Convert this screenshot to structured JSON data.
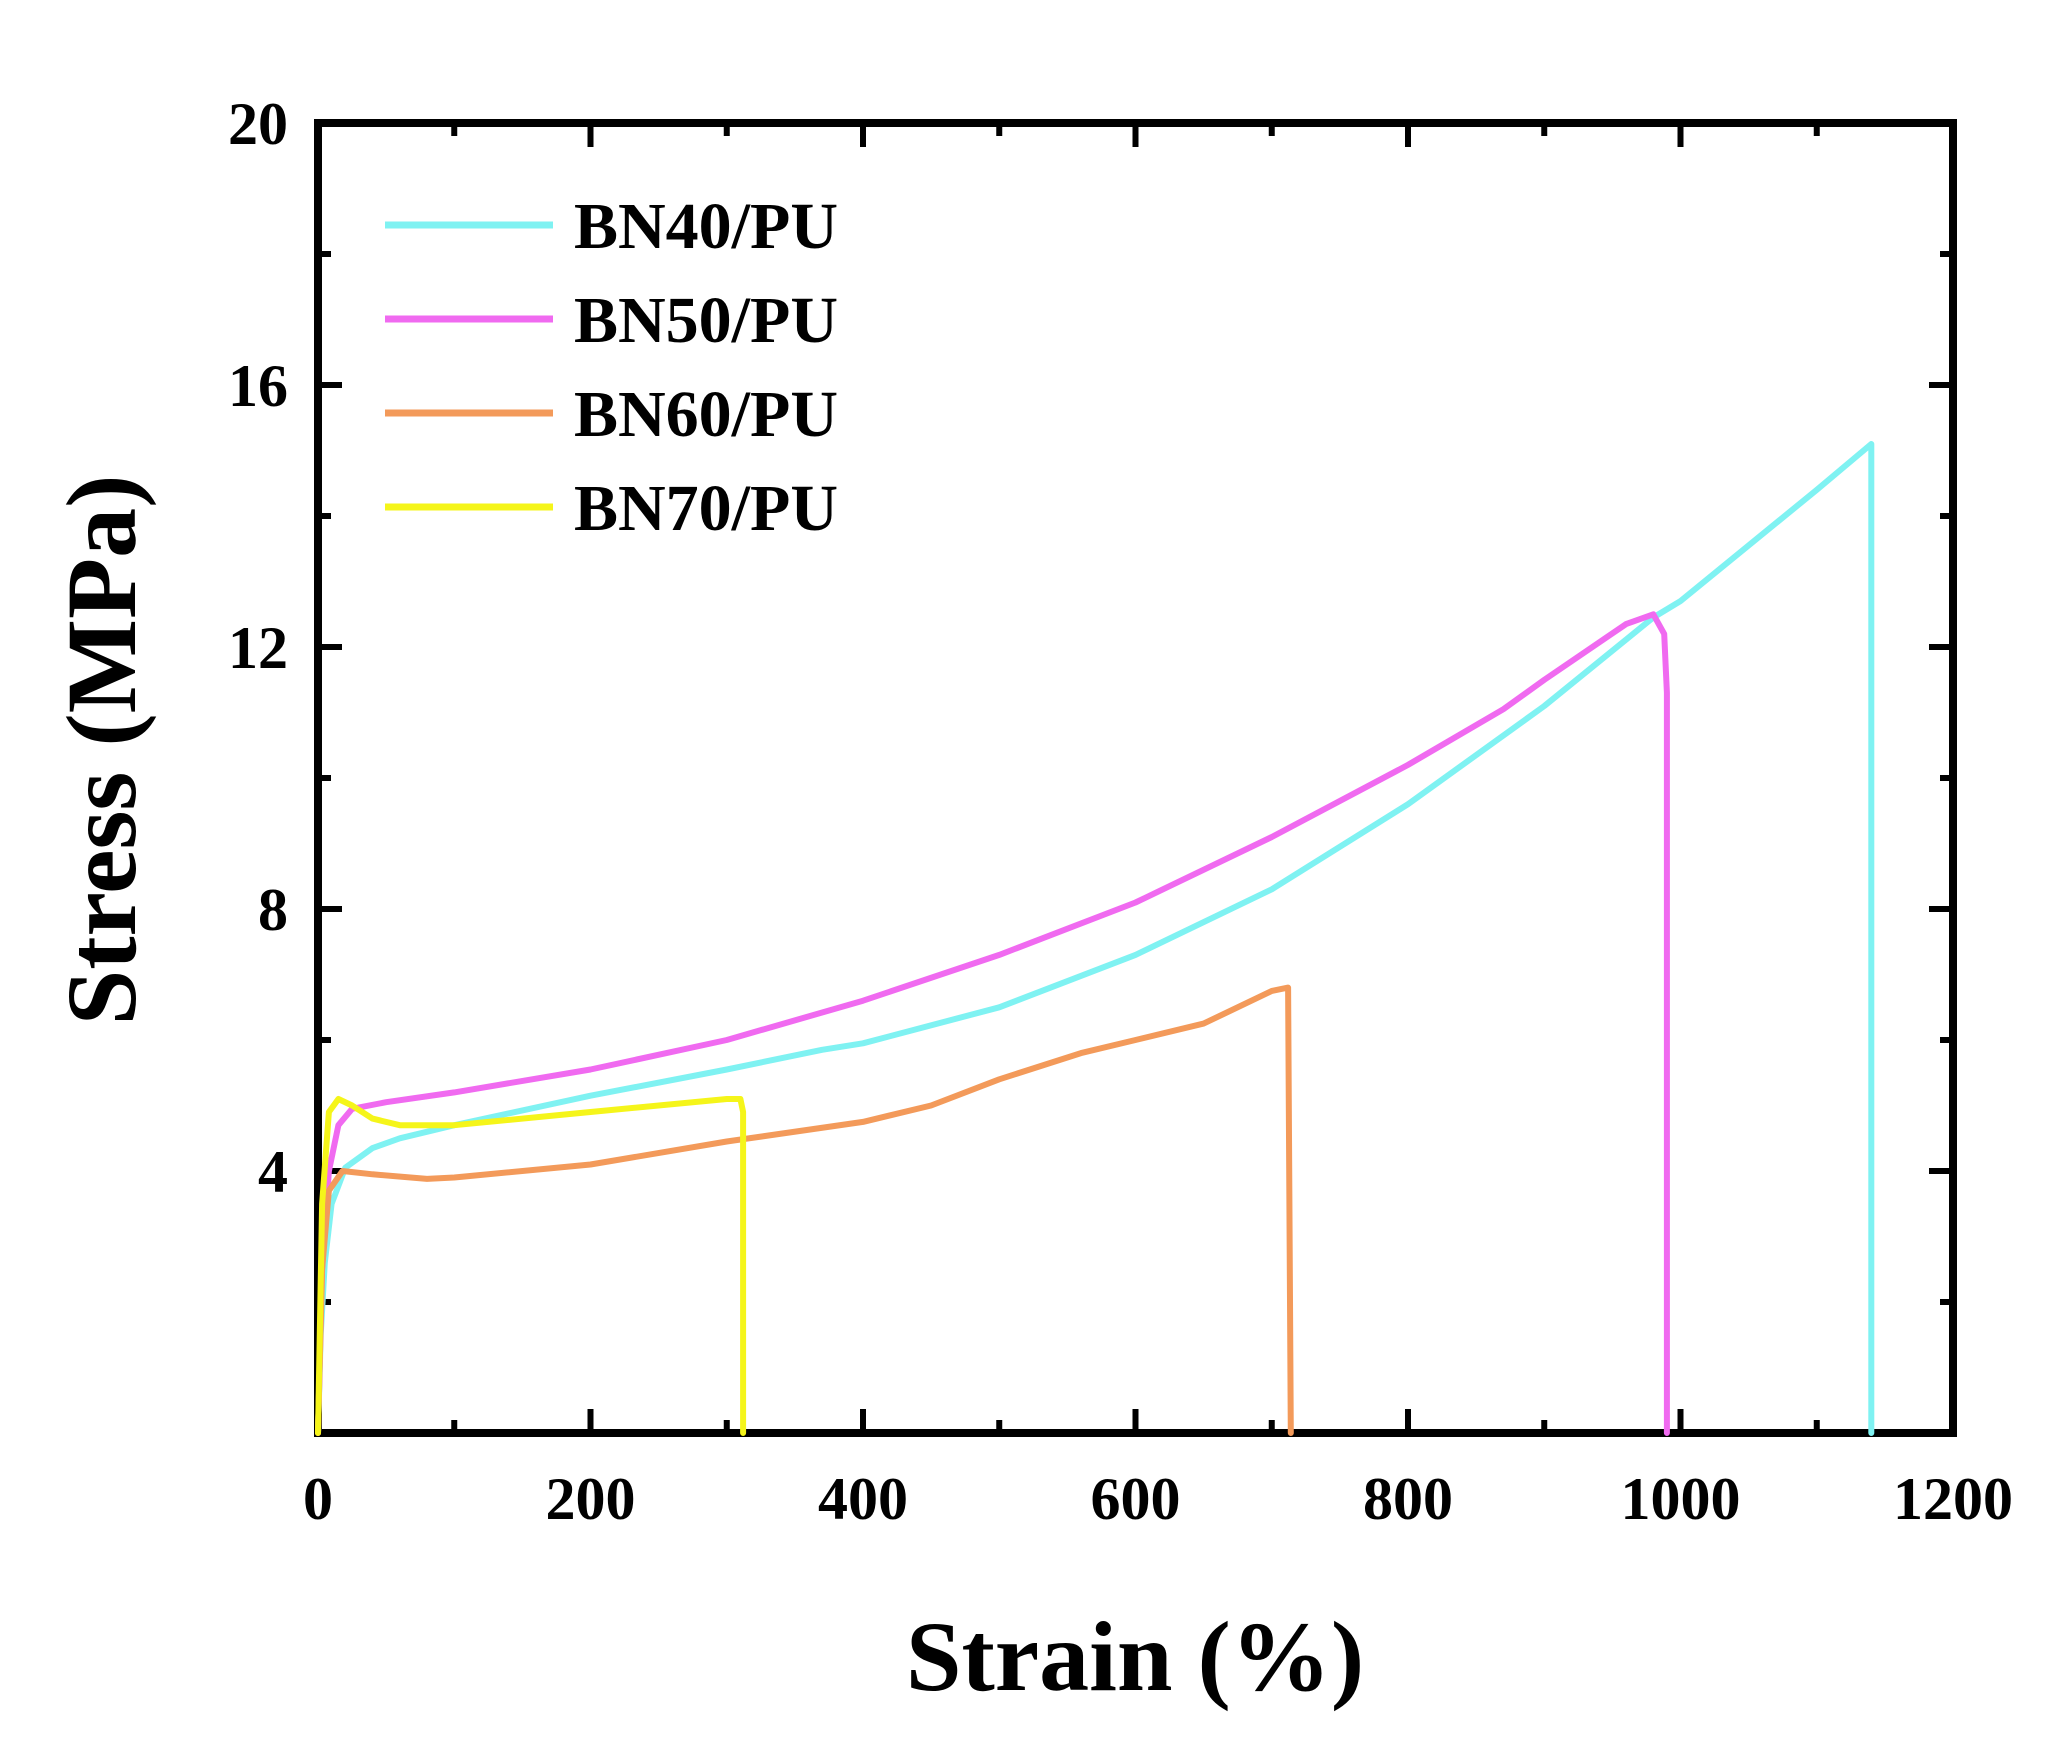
{
  "chart_data": {
    "type": "line",
    "title": "",
    "xlabel": "Strain (%)",
    "ylabel": "Stress (MPa)",
    "xlim": [
      0,
      1200
    ],
    "ylim": [
      0,
      20
    ],
    "x_ticks": [
      0,
      200,
      400,
      600,
      800,
      1000,
      1200
    ],
    "x_tick_labels": [
      "0",
      "200",
      "400",
      "600",
      "800",
      "1000",
      "1200"
    ],
    "y_ticks": [
      4,
      8,
      12,
      16,
      20
    ],
    "y_tick_labels": [
      "4",
      "8",
      "12",
      "16",
      "20"
    ],
    "grid": false,
    "legend_position": "top-left",
    "series": [
      {
        "name": "BN40/PU",
        "color": "#7ff2f2",
        "points": [
          [
            0,
            0
          ],
          [
            2,
            1.5
          ],
          [
            5,
            2.6
          ],
          [
            10,
            3.5
          ],
          [
            20,
            4.05
          ],
          [
            40,
            4.35
          ],
          [
            60,
            4.5
          ],
          [
            100,
            4.7
          ],
          [
            200,
            5.15
          ],
          [
            300,
            5.55
          ],
          [
            370,
            5.85
          ],
          [
            400,
            5.95
          ],
          [
            500,
            6.5
          ],
          [
            600,
            7.3
          ],
          [
            700,
            8.3
          ],
          [
            800,
            9.6
          ],
          [
            900,
            11.1
          ],
          [
            980,
            12.45
          ],
          [
            1000,
            12.7
          ],
          [
            1100,
            14.4
          ],
          [
            1140,
            15.1
          ],
          [
            1140,
            0
          ]
        ]
      },
      {
        "name": "BN50/PU",
        "color": "#f06af0",
        "points": [
          [
            0,
            0
          ],
          [
            3,
            2.5
          ],
          [
            8,
            4.0
          ],
          [
            15,
            4.7
          ],
          [
            25,
            4.95
          ],
          [
            50,
            5.05
          ],
          [
            100,
            5.2
          ],
          [
            200,
            5.55
          ],
          [
            300,
            6.0
          ],
          [
            400,
            6.6
          ],
          [
            500,
            7.3
          ],
          [
            600,
            8.1
          ],
          [
            700,
            9.1
          ],
          [
            800,
            10.2
          ],
          [
            870,
            11.05
          ],
          [
            900,
            11.5
          ],
          [
            960,
            12.35
          ],
          [
            980,
            12.5
          ],
          [
            988,
            12.2
          ],
          [
            990,
            11.3
          ],
          [
            990,
            0
          ]
        ]
      },
      {
        "name": "BN60/PU",
        "color": "#f39a5a",
        "points": [
          [
            0,
            0
          ],
          [
            3,
            2.5
          ],
          [
            8,
            3.7
          ],
          [
            18,
            4.0
          ],
          [
            40,
            3.95
          ],
          [
            80,
            3.88
          ],
          [
            100,
            3.9
          ],
          [
            200,
            4.1
          ],
          [
            300,
            4.45
          ],
          [
            400,
            4.75
          ],
          [
            450,
            5.0
          ],
          [
            500,
            5.4
          ],
          [
            560,
            5.8
          ],
          [
            600,
            6.0
          ],
          [
            650,
            6.25
          ],
          [
            700,
            6.75
          ],
          [
            712,
            6.8
          ],
          [
            714,
            0
          ]
        ]
      },
      {
        "name": "BN70/PU",
        "color": "#f5f51a",
        "points": [
          [
            0,
            0
          ],
          [
            3,
            3.5
          ],
          [
            8,
            4.9
          ],
          [
            15,
            5.1
          ],
          [
            25,
            5.0
          ],
          [
            40,
            4.8
          ],
          [
            60,
            4.7
          ],
          [
            100,
            4.7
          ],
          [
            200,
            4.9
          ],
          [
            300,
            5.1
          ],
          [
            310,
            5.1
          ],
          [
            312,
            4.9
          ],
          [
            312,
            0
          ]
        ]
      }
    ]
  }
}
